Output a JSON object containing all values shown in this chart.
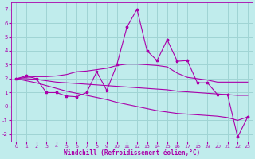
{
  "xlabel": "Windchill (Refroidissement éolien,°C)",
  "bg_color": "#c0ecec",
  "grid_color": "#a0d4d4",
  "line_color": "#aa00aa",
  "x": [
    0,
    1,
    2,
    3,
    4,
    5,
    6,
    7,
    8,
    9,
    10,
    11,
    12,
    13,
    14,
    15,
    16,
    17,
    18,
    19,
    20,
    21,
    22,
    23
  ],
  "y_main": [
    2.0,
    2.2,
    2.0,
    1.0,
    1.0,
    0.75,
    0.7,
    1.0,
    2.5,
    1.15,
    3.0,
    5.7,
    7.0,
    4.0,
    3.3,
    4.8,
    3.25,
    3.3,
    1.7,
    1.7,
    0.85,
    0.85,
    -2.2,
    -0.75
  ],
  "y_upper": [
    2.0,
    2.1,
    2.15,
    2.15,
    2.2,
    2.3,
    2.5,
    2.55,
    2.65,
    2.75,
    2.95,
    3.05,
    3.05,
    3.0,
    2.95,
    2.85,
    2.4,
    2.1,
    2.0,
    1.9,
    1.75,
    1.75,
    1.75,
    1.75
  ],
  "y_mid": [
    2.0,
    2.0,
    1.95,
    1.85,
    1.75,
    1.7,
    1.65,
    1.6,
    1.55,
    1.5,
    1.45,
    1.4,
    1.35,
    1.3,
    1.25,
    1.2,
    1.1,
    1.05,
    1.0,
    0.95,
    0.9,
    0.85,
    0.8,
    0.8
  ],
  "y_lower": [
    2.0,
    1.85,
    1.7,
    1.5,
    1.3,
    1.1,
    0.95,
    0.8,
    0.65,
    0.5,
    0.3,
    0.15,
    0.0,
    -0.15,
    -0.3,
    -0.4,
    -0.5,
    -0.55,
    -0.6,
    -0.65,
    -0.7,
    -0.8,
    -1.0,
    -0.75
  ],
  "ylim": [
    -2.5,
    7.5
  ],
  "xlim": [
    -0.5,
    23.5
  ],
  "yticks": [
    -2,
    -1,
    0,
    1,
    2,
    3,
    4,
    5,
    6,
    7
  ],
  "xticks": [
    0,
    1,
    2,
    3,
    4,
    5,
    6,
    7,
    8,
    9,
    10,
    11,
    12,
    13,
    14,
    15,
    16,
    17,
    18,
    19,
    20,
    21,
    22,
    23
  ]
}
